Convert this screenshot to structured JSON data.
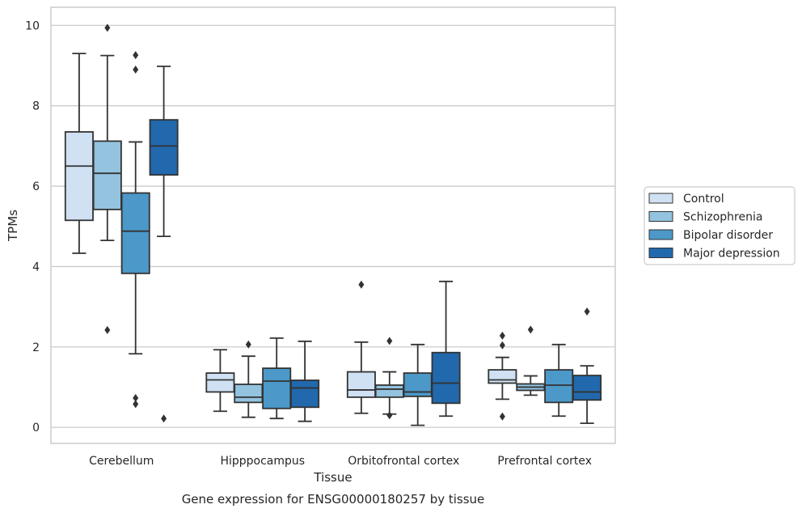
{
  "chart_data": {
    "type": "box",
    "xlabel": "Tissue",
    "ylabel": "TPMs",
    "caption": "Gene expression for ENSG00000180257 by tissue",
    "ylim": [
      -0.4,
      10.45
    ],
    "yticks": [
      0,
      2,
      4,
      6,
      8,
      10
    ],
    "grid": "horizontal",
    "legend_position": "right",
    "categories": [
      "Cerebellum",
      "Hipppocampus",
      "Orbitofrontal cortex",
      "Prefrontal cortex"
    ],
    "series": [
      {
        "name": "Control",
        "color": "#cfe1f2",
        "boxes": [
          {
            "whislo": 4.33,
            "q1": 5.15,
            "med": 6.5,
            "q3": 7.35,
            "whishi": 9.3,
            "fliers": []
          },
          {
            "whislo": 0.4,
            "q1": 0.88,
            "med": 1.18,
            "q3": 1.35,
            "whishi": 1.93,
            "fliers": []
          },
          {
            "whislo": 0.35,
            "q1": 0.75,
            "med": 0.93,
            "q3": 1.38,
            "whishi": 2.12,
            "fliers": [
              3.55
            ]
          },
          {
            "whislo": 0.7,
            "q1": 1.1,
            "med": 1.18,
            "q3": 1.43,
            "whishi": 1.74,
            "fliers": [
              2.28,
              2.04,
              0.27
            ]
          }
        ]
      },
      {
        "name": "Schizophrenia",
        "color": "#93c3df",
        "boxes": [
          {
            "whislo": 4.65,
            "q1": 5.42,
            "med": 6.32,
            "q3": 7.12,
            "whishi": 9.25,
            "fliers": [
              9.94,
              2.42
            ]
          },
          {
            "whislo": 0.25,
            "q1": 0.62,
            "med": 0.75,
            "q3": 1.07,
            "whishi": 1.77,
            "fliers": [
              2.06
            ]
          },
          {
            "whislo": 0.33,
            "q1": 0.75,
            "med": 0.95,
            "q3": 1.05,
            "whishi": 1.38,
            "fliers": [
              2.15,
              0.3
            ]
          },
          {
            "whislo": 0.8,
            "q1": 0.92,
            "med": 1.0,
            "q3": 1.08,
            "whishi": 1.28,
            "fliers": [
              2.43
            ]
          }
        ]
      },
      {
        "name": "Bipolar disorder",
        "color": "#4b98c9",
        "boxes": [
          {
            "whislo": 1.83,
            "q1": 3.83,
            "med": 4.88,
            "q3": 5.83,
            "whishi": 7.1,
            "fliers": [
              9.26,
              8.9,
              0.73,
              0.58
            ]
          },
          {
            "whislo": 0.22,
            "q1": 0.47,
            "med": 1.15,
            "q3": 1.47,
            "whishi": 2.22,
            "fliers": []
          },
          {
            "whislo": 0.05,
            "q1": 0.77,
            "med": 0.88,
            "q3": 1.35,
            "whishi": 2.06,
            "fliers": []
          },
          {
            "whislo": 0.28,
            "q1": 0.62,
            "med": 1.05,
            "q3": 1.43,
            "whishi": 2.06,
            "fliers": []
          }
        ]
      },
      {
        "name": "Major depression",
        "color": "#2268ac",
        "boxes": [
          {
            "whislo": 4.75,
            "q1": 6.28,
            "med": 7.0,
            "q3": 7.65,
            "whishi": 8.98,
            "fliers": [
              0.22
            ]
          },
          {
            "whislo": 0.15,
            "q1": 0.5,
            "med": 0.98,
            "q3": 1.17,
            "whishi": 2.14,
            "fliers": []
          },
          {
            "whislo": 0.28,
            "q1": 0.6,
            "med": 1.1,
            "q3": 1.86,
            "whishi": 3.63,
            "fliers": []
          },
          {
            "whislo": 0.1,
            "q1": 0.68,
            "med": 0.88,
            "q3": 1.29,
            "whishi": 1.53,
            "fliers": [
              2.88
            ]
          }
        ]
      }
    ]
  }
}
